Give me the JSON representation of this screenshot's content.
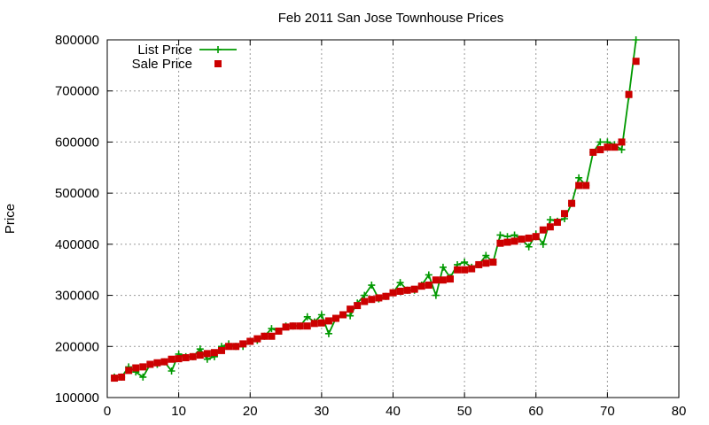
{
  "chart_data": {
    "type": "line",
    "title": "Feb 2011 San Jose Townhouse Prices",
    "xlabel": "",
    "ylabel": "Price",
    "xlim": [
      0,
      80
    ],
    "ylim": [
      100000,
      800000
    ],
    "x_ticks": [
      0,
      10,
      20,
      30,
      40,
      50,
      60,
      70,
      80
    ],
    "y_ticks": [
      100000,
      200000,
      300000,
      400000,
      500000,
      600000,
      700000,
      800000
    ],
    "grid": true,
    "legend_position": "top-left",
    "series": [
      {
        "name": "List Price",
        "style": "line-plus",
        "color": "#009900",
        "x": [
          1,
          2,
          3,
          4,
          5,
          6,
          7,
          8,
          9,
          10,
          11,
          12,
          13,
          14,
          15,
          16,
          17,
          18,
          19,
          20,
          21,
          22,
          23,
          24,
          25,
          26,
          27,
          28,
          29,
          30,
          31,
          32,
          33,
          34,
          35,
          36,
          37,
          38,
          39,
          40,
          41,
          42,
          43,
          44,
          45,
          46,
          47,
          48,
          49,
          50,
          51,
          52,
          53,
          54,
          55,
          56,
          57,
          58,
          59,
          60,
          61,
          62,
          63,
          64,
          65,
          66,
          67,
          68,
          69,
          70,
          71,
          72,
          73,
          74
        ],
        "y": [
          140000,
          140000,
          160000,
          150000,
          140000,
          165000,
          165000,
          170000,
          152000,
          185000,
          180000,
          180000,
          195000,
          175000,
          180000,
          200000,
          205000,
          200000,
          200000,
          210000,
          212000,
          220000,
          235000,
          230000,
          240000,
          240000,
          240000,
          258000,
          248000,
          262000,
          225000,
          255000,
          262000,
          260000,
          285000,
          300000,
          320000,
          293000,
          298000,
          305000,
          325000,
          310000,
          310000,
          320000,
          340000,
          300000,
          355000,
          335000,
          360000,
          365000,
          355000,
          360000,
          378000,
          365000,
          418000,
          415000,
          418000,
          410000,
          395000,
          420000,
          400000,
          448000,
          445000,
          450000,
          480000,
          530000,
          515000,
          580000,
          600000,
          600000,
          595000,
          585000,
          690000,
          800000
        ]
      },
      {
        "name": "Sale Price",
        "style": "points-square",
        "color": "#cc0000",
        "x": [
          1,
          2,
          3,
          4,
          5,
          6,
          7,
          8,
          9,
          10,
          11,
          12,
          13,
          14,
          15,
          16,
          17,
          18,
          19,
          20,
          21,
          22,
          23,
          24,
          25,
          26,
          27,
          28,
          29,
          30,
          31,
          32,
          33,
          34,
          35,
          36,
          37,
          38,
          39,
          40,
          41,
          42,
          43,
          44,
          45,
          46,
          47,
          48,
          49,
          50,
          51,
          52,
          53,
          54,
          55,
          56,
          57,
          58,
          59,
          60,
          61,
          62,
          63,
          64,
          65,
          66,
          67,
          68,
          69,
          70,
          71,
          72,
          73,
          74
        ],
        "y": [
          138000,
          140000,
          153000,
          158000,
          160000,
          165000,
          168000,
          170000,
          175000,
          176000,
          178000,
          180000,
          183000,
          186000,
          188000,
          192000,
          200000,
          200000,
          205000,
          210000,
          215000,
          220000,
          220000,
          230000,
          238000,
          240000,
          240000,
          240000,
          245000,
          246000,
          250000,
          255000,
          262000,
          273000,
          280000,
          288000,
          292000,
          295000,
          298000,
          305000,
          308000,
          310000,
          312000,
          318000,
          320000,
          330000,
          330000,
          332000,
          350000,
          350000,
          352000,
          360000,
          363000,
          365000,
          402000,
          404000,
          406000,
          410000,
          412000,
          415000,
          428000,
          434000,
          443000,
          460000,
          480000,
          515000,
          515000,
          580000,
          585000,
          590000,
          590000,
          600000,
          693000,
          758000
        ]
      }
    ]
  }
}
